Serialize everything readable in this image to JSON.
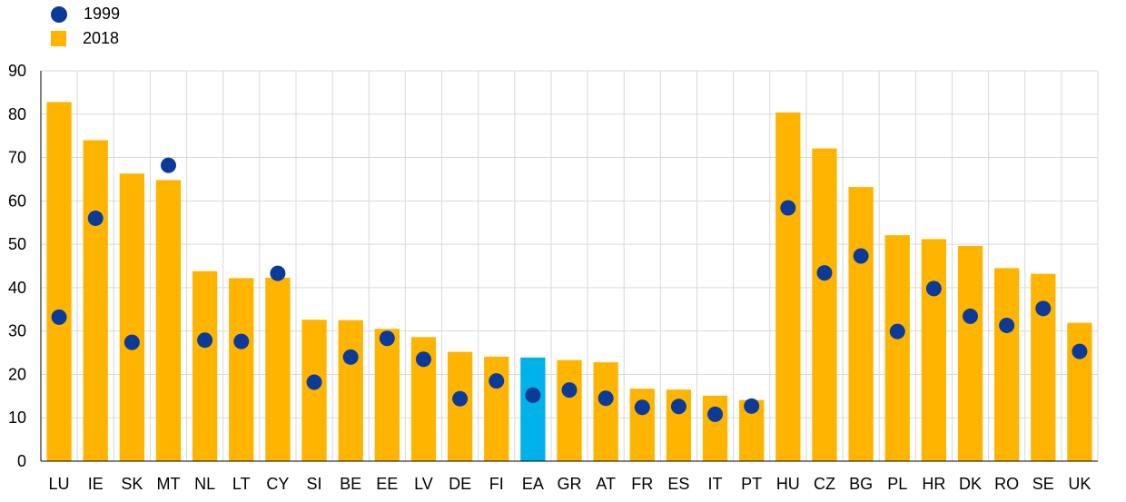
{
  "chart_data": {
    "type": "bar",
    "categories": [
      "LU",
      "IE",
      "SK",
      "MT",
      "NL",
      "LT",
      "CY",
      "SI",
      "BE",
      "EE",
      "LV",
      "DE",
      "FI",
      "EA",
      "GR",
      "AT",
      "FR",
      "ES",
      "IT",
      "PT",
      "HU",
      "CZ",
      "BG",
      "PL",
      "HR",
      "DK",
      "RO",
      "SE",
      "UK"
    ],
    "series": [
      {
        "name": "2018",
        "kind": "bar",
        "values": [
          82.8,
          74.0,
          66.3,
          64.8,
          43.8,
          42.2,
          42.3,
          32.6,
          32.5,
          30.5,
          28.6,
          25.2,
          24.1,
          23.9,
          23.3,
          22.8,
          16.7,
          16.5,
          15.1,
          14.1,
          80.4,
          72.1,
          63.2,
          52.1,
          51.2,
          49.6,
          44.5,
          43.2,
          31.9
        ]
      },
      {
        "name": "1999",
        "kind": "dot",
        "values": [
          33.2,
          56.0,
          27.4,
          68.2,
          27.9,
          27.6,
          43.3,
          18.2,
          24.0,
          28.3,
          23.5,
          14.4,
          18.5,
          15.2,
          16.4,
          14.5,
          12.4,
          12.6,
          10.8,
          12.7,
          58.4,
          43.4,
          47.3,
          29.9,
          39.8,
          33.4,
          31.3,
          35.2,
          25.3
        ]
      }
    ],
    "highlight_category": "EA",
    "ylim": [
      0,
      90
    ],
    "yticks": [
      "0",
      "10",
      "20",
      "30",
      "40",
      "50",
      "60",
      "70",
      "80",
      "90"
    ],
    "grid": true,
    "legend_position": "top-left",
    "colors": {
      "bar": "#ffb400",
      "bar_highlight": "#00b1ea",
      "dot": "#0b3a99",
      "grid": "#d9d9d9",
      "axis": "#000000"
    }
  },
  "legend": [
    {
      "label": "1999",
      "marker": "dot"
    },
    {
      "label": "2018",
      "marker": "square"
    }
  ]
}
